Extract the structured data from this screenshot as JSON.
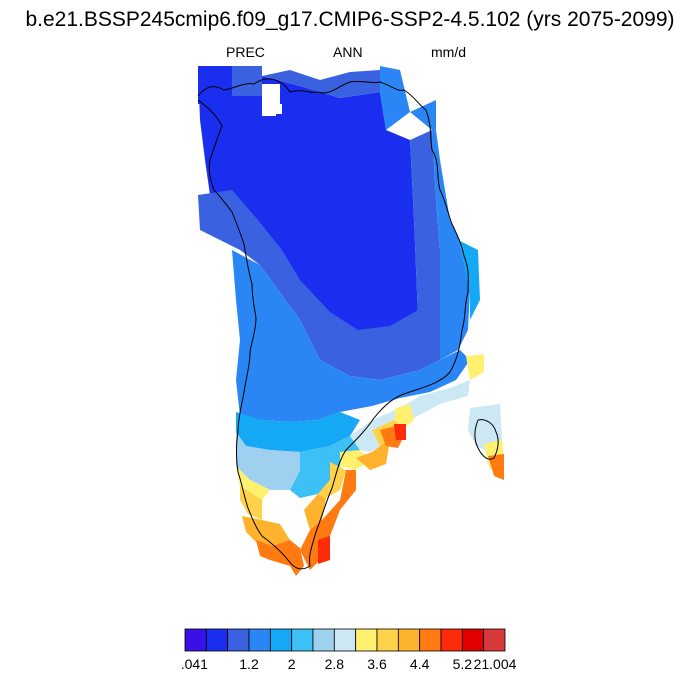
{
  "title": "b.e21.BSSP245cmip6.f09_g17.CMIP6-SSP2-4.5.102 (yrs 2075-2099)",
  "subtitle": {
    "left": "PREC",
    "center": "ANN",
    "right": "mm/d"
  },
  "colorbar": {
    "colors": [
      "#3a10e8",
      "#1a2ef0",
      "#3a62e0",
      "#2a86f5",
      "#14a8f5",
      "#3cc0f5",
      "#a0d0f0",
      "#cde8f5",
      "#fff070",
      "#ffd24a",
      "#ffb22c",
      "#ff7a10",
      "#ff2a0a",
      "#e00000",
      "#d83a3a"
    ],
    "labels": [
      ".041",
      "1.2",
      "2",
      "2.8",
      "3.6",
      "4.4",
      "5.2",
      "21.004"
    ]
  }
}
